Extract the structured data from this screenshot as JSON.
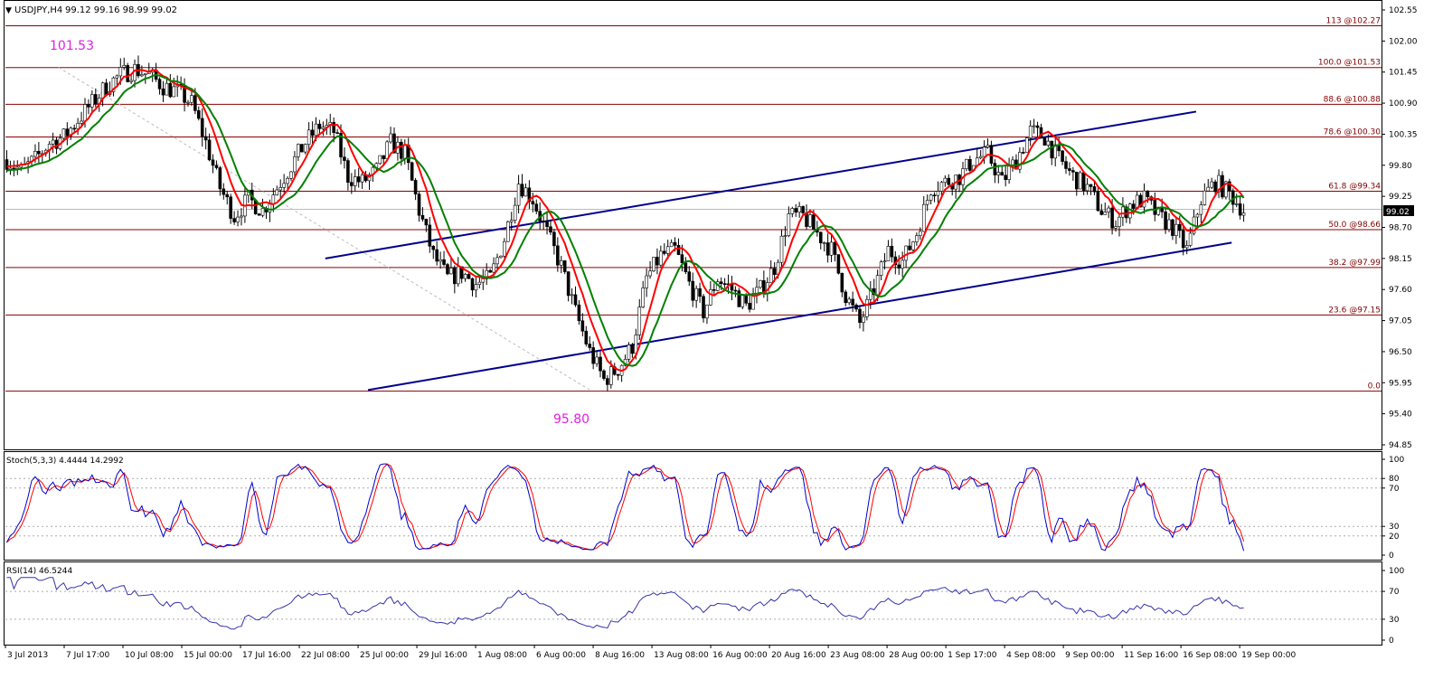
{
  "header": {
    "symbol_timeframe": "USDJPY,H4",
    "ohlc": "99.12 99.16 98.99 99.02"
  },
  "price_panel": {
    "ylim": [
      94.85,
      102.55
    ],
    "y_ticks": [
      "102.55",
      "102.00",
      "101.45",
      "100.90",
      "100.35",
      "99.80",
      "99.25",
      "98.70",
      "98.15",
      "97.60",
      "97.05",
      "96.50",
      "95.95",
      "95.40",
      "94.85"
    ],
    "current_price": "99.02",
    "high_label": "101.53",
    "low_label": "95.80",
    "fib_levels": [
      {
        "label": "113 @102.27",
        "price": 102.27
      },
      {
        "label": "100.0 @101.53",
        "price": 101.53
      },
      {
        "label": "88.6 @100.88",
        "price": 100.88
      },
      {
        "label": "78.6 @100.30",
        "price": 100.3
      },
      {
        "label": "61.8 @99.34",
        "price": 99.34
      },
      {
        "label": "50.0 @98.66",
        "price": 98.66
      },
      {
        "label": "38.2 @97.99",
        "price": 97.99
      },
      {
        "label": "23.6 @97.15",
        "price": 97.15
      },
      {
        "label": "0.0",
        "price": 95.8
      }
    ]
  },
  "stoch_panel": {
    "label": "Stoch(5,3,3) 4.4444 14.2992",
    "y_ticks": [
      "100",
      "80",
      "70",
      "30",
      "20",
      "0"
    ]
  },
  "rsi_panel": {
    "label": "RSI(14) 46.5244",
    "y_ticks": [
      "100",
      "70",
      "30",
      "0"
    ]
  },
  "x_axis": {
    "labels": [
      "3 Jul 2013",
      "7 Jul 17:00",
      "10 Jul 08:00",
      "15 Jul 00:00",
      "17 Jul 16:00",
      "22 Jul 08:00",
      "25 Jul 00:00",
      "29 Jul 16:00",
      "1 Aug 08:00",
      "6 Aug 00:00",
      "8 Aug 16:00",
      "13 Aug 08:00",
      "16 Aug 00:00",
      "20 Aug 16:00",
      "23 Aug 08:00",
      "28 Aug 00:00",
      "1 Sep 17:00",
      "4 Sep 08:00",
      "9 Sep 00:00",
      "11 Sep 16:00",
      "16 Sep 08:00",
      "19 Sep 00:00"
    ]
  },
  "chart_data": {
    "type": "candlestick",
    "symbol": "USDJPY",
    "timeframe": "H4",
    "price_path": [
      [
        0,
        99.9
      ],
      [
        4,
        99.7
      ],
      [
        8,
        99.9
      ],
      [
        12,
        100.2
      ],
      [
        16,
        100.3
      ],
      [
        20,
        100.6
      ],
      [
        24,
        100.9
      ],
      [
        28,
        101.2
      ],
      [
        32,
        101.4
      ],
      [
        36,
        101.5
      ],
      [
        40,
        101.4
      ],
      [
        44,
        101.2
      ],
      [
        48,
        101.1
      ],
      [
        52,
        100.9
      ],
      [
        56,
        100.2
      ],
      [
        60,
        99.4
      ],
      [
        64,
        98.9
      ],
      [
        68,
        99.2
      ],
      [
        72,
        99.0
      ],
      [
        76,
        99.4
      ],
      [
        80,
        99.8
      ],
      [
        84,
        100.2
      ],
      [
        88,
        100.5
      ],
      [
        92,
        100.4
      ],
      [
        96,
        99.6
      ],
      [
        100,
        99.5
      ],
      [
        104,
        99.7
      ],
      [
        108,
        100.2
      ],
      [
        112,
        100.0
      ],
      [
        116,
        99.0
      ],
      [
        120,
        98.2
      ],
      [
        124,
        97.8
      ],
      [
        128,
        97.9
      ],
      [
        132,
        97.7
      ],
      [
        136,
        97.8
      ],
      [
        140,
        98.5
      ],
      [
        144,
        99.5
      ],
      [
        148,
        99.2
      ],
      [
        152,
        98.6
      ],
      [
        156,
        98.0
      ],
      [
        160,
        97.2
      ],
      [
        164,
        96.5
      ],
      [
        168,
        96.0
      ],
      [
        172,
        96.2
      ],
      [
        176,
        96.6
      ],
      [
        180,
        97.8
      ],
      [
        184,
        98.2
      ],
      [
        188,
        98.3
      ],
      [
        192,
        97.7
      ],
      [
        196,
        97.2
      ],
      [
        200,
        97.8
      ],
      [
        204,
        97.6
      ],
      [
        208,
        97.3
      ],
      [
        212,
        97.6
      ],
      [
        216,
        98.0
      ],
      [
        220,
        98.9
      ],
      [
        224,
        98.9
      ],
      [
        228,
        98.6
      ],
      [
        232,
        98.3
      ],
      [
        236,
        97.5
      ],
      [
        240,
        97.0
      ],
      [
        244,
        97.6
      ],
      [
        248,
        98.3
      ],
      [
        252,
        98.1
      ],
      [
        256,
        98.6
      ],
      [
        260,
        99.4
      ],
      [
        264,
        99.5
      ],
      [
        268,
        99.6
      ],
      [
        272,
        99.9
      ],
      [
        276,
        100.0
      ],
      [
        280,
        99.5
      ],
      [
        284,
        99.9
      ],
      [
        288,
        100.4
      ],
      [
        292,
        100.3
      ],
      [
        296,
        99.9
      ],
      [
        300,
        99.6
      ],
      [
        304,
        99.4
      ],
      [
        308,
        99.0
      ],
      [
        312,
        98.8
      ],
      [
        316,
        99.1
      ],
      [
        320,
        99.2
      ],
      [
        324,
        98.9
      ],
      [
        328,
        98.7
      ],
      [
        332,
        98.3
      ],
      [
        336,
        99.2
      ],
      [
        340,
        99.5
      ],
      [
        344,
        99.3
      ],
      [
        348,
        99.0
      ]
    ],
    "fib_retracement": {
      "high": 101.53,
      "low": 95.8
    },
    "channel": {
      "upper": [
        [
          90,
          98.15
        ],
        [
          335,
          100.75
        ]
      ],
      "lower": [
        [
          102,
          95.82
        ],
        [
          345,
          98.43
        ]
      ]
    },
    "indicators": [
      "Stoch(5,3,3)",
      "RSI(14)"
    ],
    "stoch_main_last": 4.4444,
    "stoch_signal_last": 14.2992,
    "rsi_last": 46.5244
  },
  "colors": {
    "background": "#ffffff",
    "fib_line": "#8b0000",
    "fib_label": "#800000",
    "channel": "#00008b",
    "ma_fast": "#ff0000",
    "ma_slow": "#008000",
    "ma_turn": "#ffd700",
    "extreme_label": "#e020e0",
    "stoch_main": "#0000cc",
    "stoch_signal": "#ff0000",
    "rsi": "#3333aa",
    "current_price_box": "#000000"
  }
}
